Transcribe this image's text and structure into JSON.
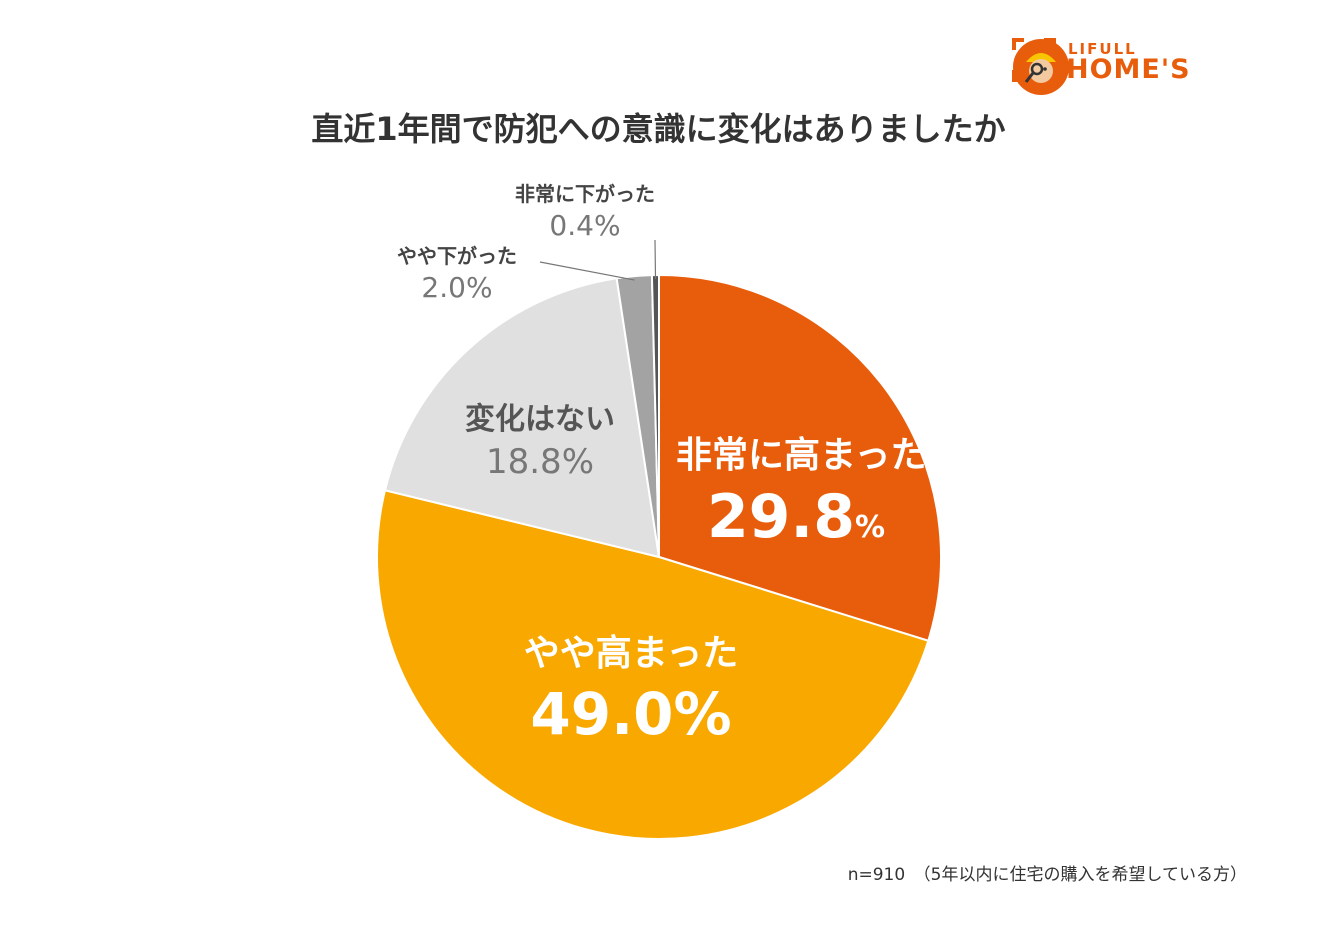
{
  "brand": {
    "line1": "LIFULL",
    "line2": "HOME'S"
  },
  "title": "直近1年間で防犯への意識に変化はありましたか",
  "footnote": "n=910　（5年以内に住宅の購入を希望している方）",
  "colors": {
    "very_increased": "#e85d0c",
    "somewhat_increased": "#f9a800",
    "no_change": "#e0e0e0",
    "somewhat_decreased": "#a3a3a3",
    "very_decreased": "#555555"
  },
  "chart_data": {
    "type": "pie",
    "title": "直近1年間で防犯への意識に変化はありましたか",
    "slices": [
      {
        "label": "非常に高まった",
        "value": 29.8,
        "display": "29.8",
        "unit": "%",
        "color": "#e85d0c"
      },
      {
        "label": "やや高まった",
        "value": 49.0,
        "display": "49.0%",
        "color": "#f9a800"
      },
      {
        "label": "変化はない",
        "value": 18.8,
        "display": "18.8%",
        "color": "#e0e0e0"
      },
      {
        "label": "やや下がった",
        "value": 2.0,
        "display": "2.0%",
        "color": "#a3a3a3"
      },
      {
        "label": "非常に下がった",
        "value": 0.4,
        "display": "0.4%",
        "color": "#555555"
      }
    ],
    "n": 910
  }
}
